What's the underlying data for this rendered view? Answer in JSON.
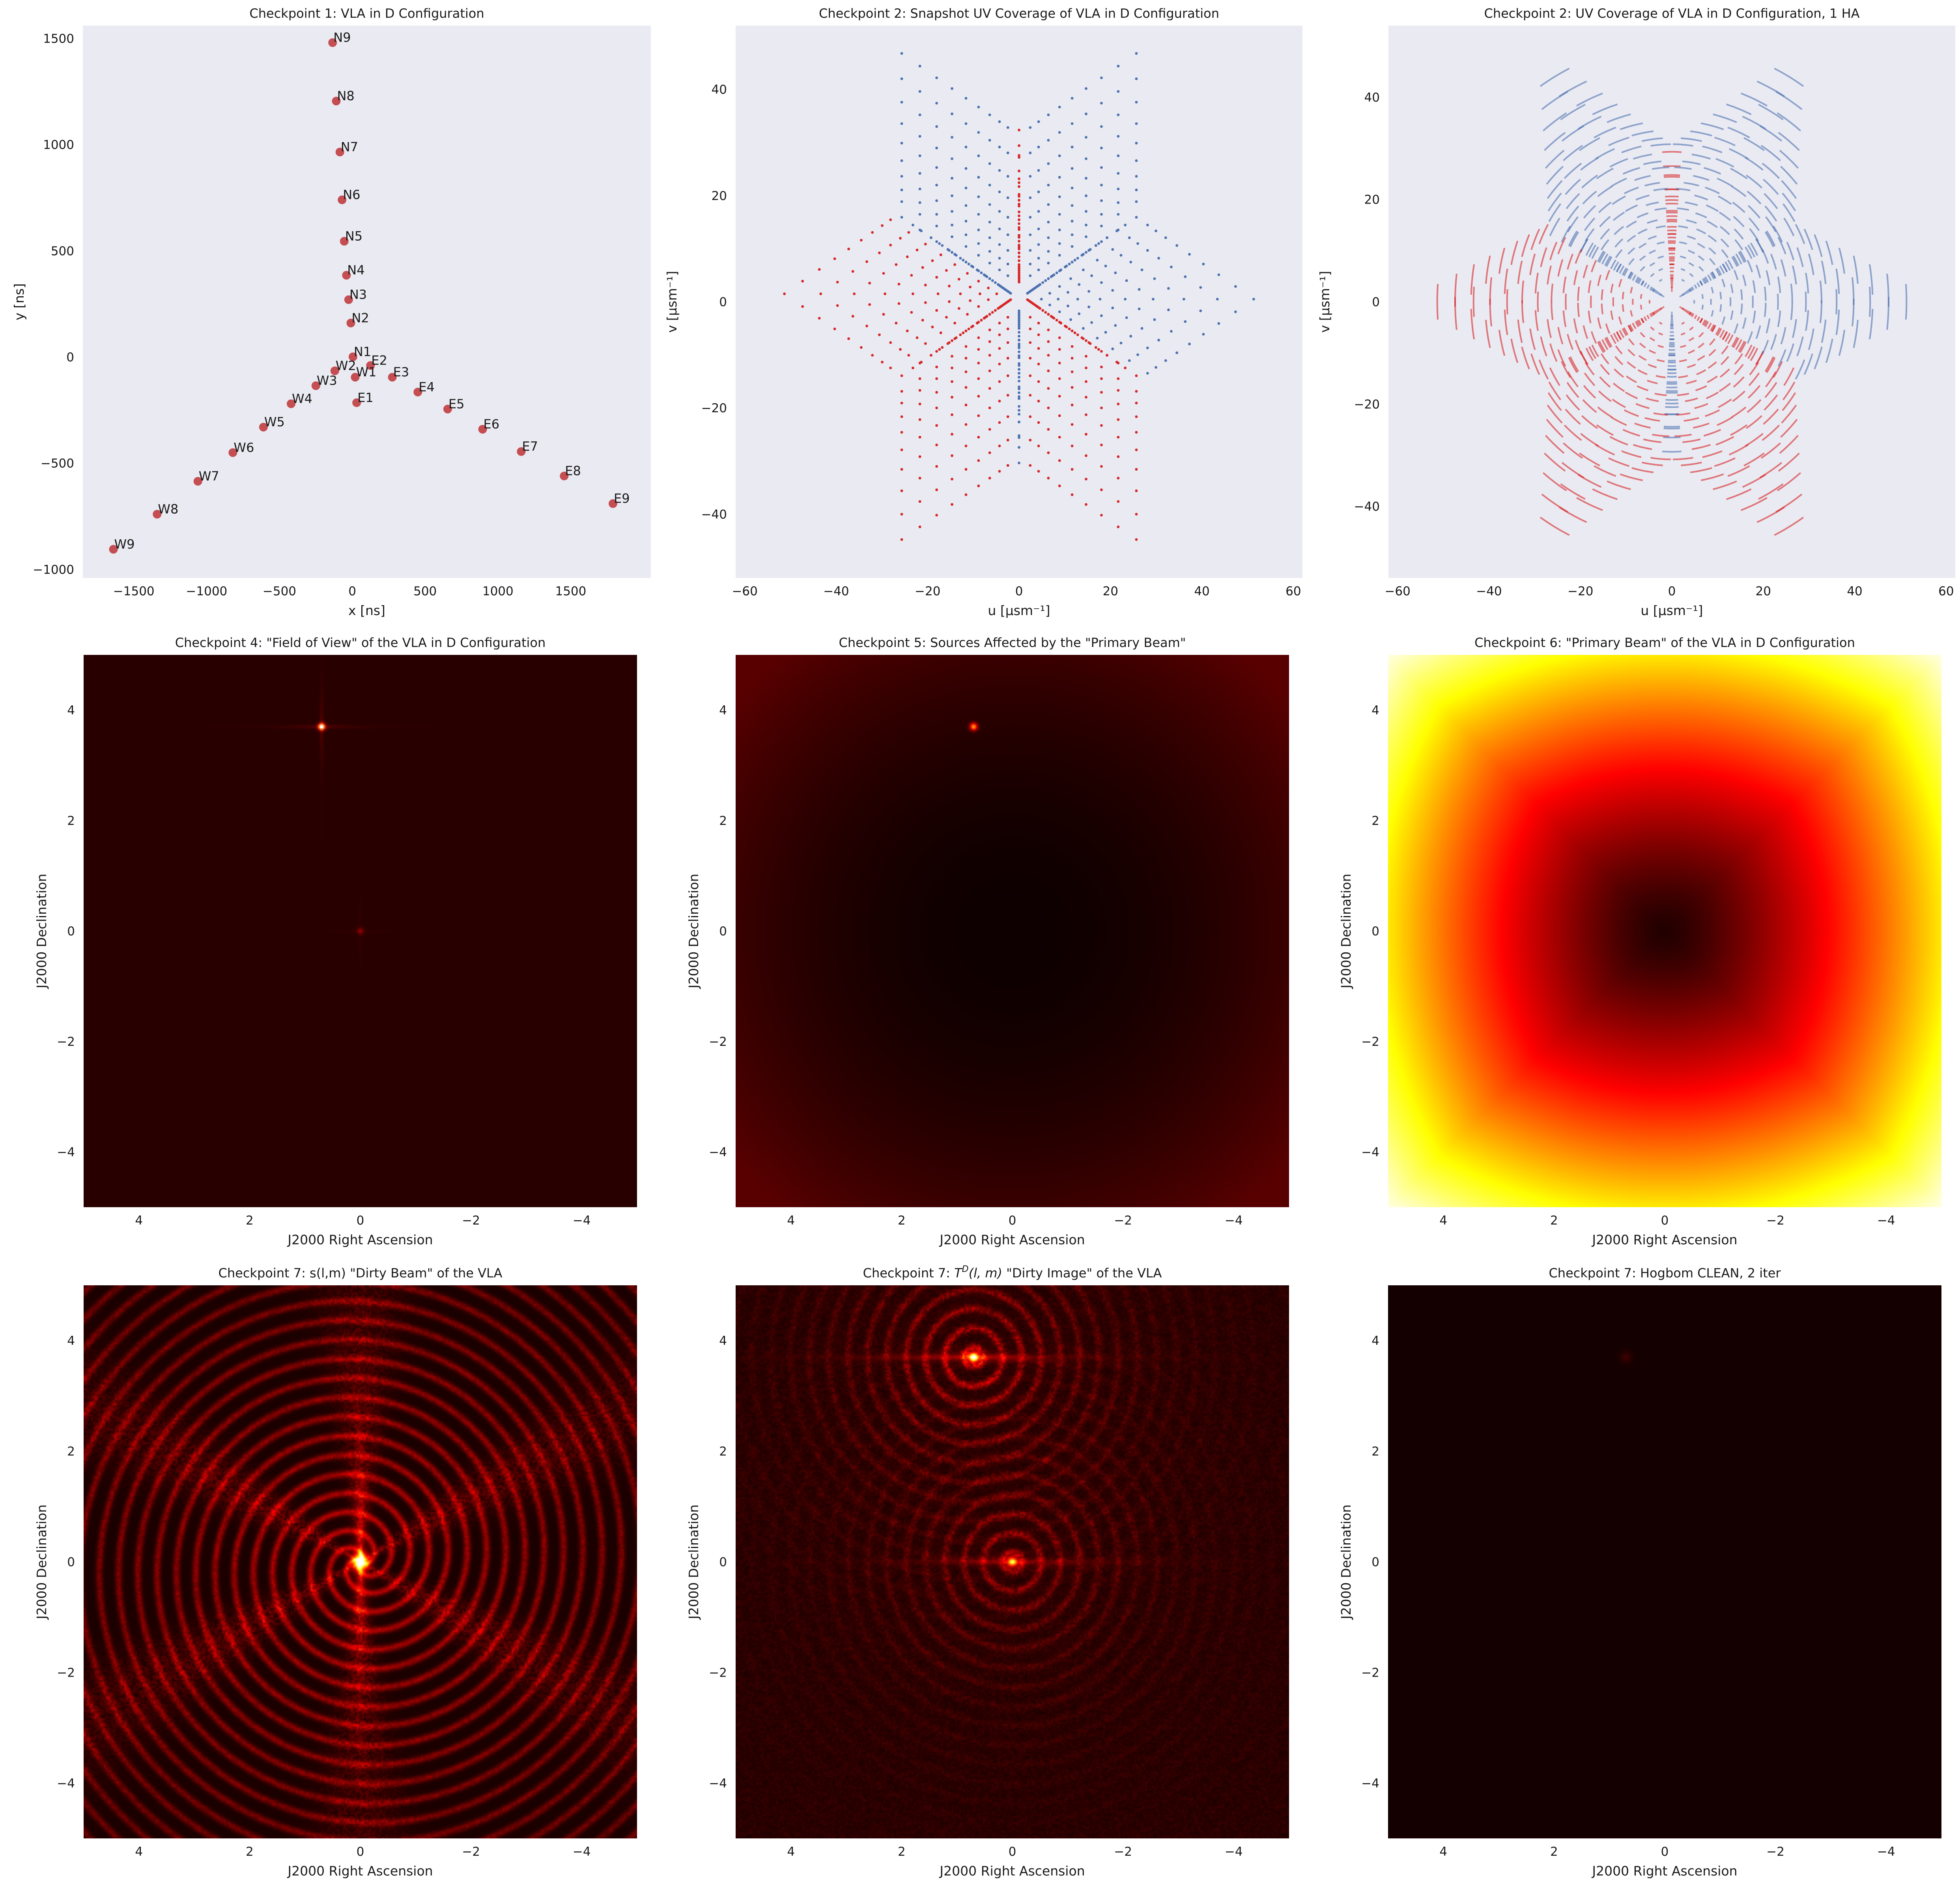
{
  "colors": {
    "axes_bg": "#eaeaf2",
    "antenna": "#c44e52",
    "uv_red": "#d62728",
    "uv_blue": "#4c72b0",
    "img_bg_dark": "#1f0000",
    "cmap_hot": [
      "#000000",
      "#ff0000",
      "#ffff00",
      "#ffffff"
    ]
  },
  "chart_data": [
    {
      "id": "p1",
      "type": "scatter",
      "title": "Checkpoint 1: VLA in D Configuration",
      "xlabel": "x [ns]",
      "ylabel": "y [ns]",
      "xlim": [
        -1850,
        2050
      ],
      "ylim": [
        -1040,
        1560
      ],
      "xticks": [
        -1500,
        -1000,
        -500,
        0,
        500,
        1000,
        1500
      ],
      "yticks": [
        -1000,
        -500,
        0,
        500,
        1000,
        1500
      ],
      "xtick_labels": [
        "−1500",
        "−1000",
        "−500",
        "0",
        "500",
        "1000",
        "1500"
      ],
      "ytick_labels": [
        "−1000",
        "−500",
        "0",
        "500",
        "1000",
        "1500"
      ],
      "grid": false,
      "points": [
        {
          "label": "N1",
          "x": 5,
          "y": 1
        },
        {
          "label": "N2",
          "x": -10,
          "y": 160
        },
        {
          "label": "N3",
          "x": -25,
          "y": 270
        },
        {
          "label": "N4",
          "x": -40,
          "y": 385
        },
        {
          "label": "N5",
          "x": -55,
          "y": 545
        },
        {
          "label": "N6",
          "x": -70,
          "y": 740
        },
        {
          "label": "N7",
          "x": -85,
          "y": 965
        },
        {
          "label": "N8",
          "x": -110,
          "y": 1205
        },
        {
          "label": "N9",
          "x": -135,
          "y": 1480
        },
        {
          "label": "E1",
          "x": 30,
          "y": -215
        },
        {
          "label": "E2",
          "x": 125,
          "y": -40
        },
        {
          "label": "E3",
          "x": 275,
          "y": -95
        },
        {
          "label": "E4",
          "x": 450,
          "y": -165
        },
        {
          "label": "E5",
          "x": 655,
          "y": -245
        },
        {
          "label": "E6",
          "x": 895,
          "y": -340
        },
        {
          "label": "E7",
          "x": 1160,
          "y": -445
        },
        {
          "label": "E8",
          "x": 1455,
          "y": -560
        },
        {
          "label": "E9",
          "x": 1790,
          "y": -690
        },
        {
          "label": "W1",
          "x": 20,
          "y": -95
        },
        {
          "label": "W2",
          "x": -120,
          "y": -65
        },
        {
          "label": "W3",
          "x": -250,
          "y": -135
        },
        {
          "label": "W4",
          "x": -420,
          "y": -220
        },
        {
          "label": "W5",
          "x": -610,
          "y": -330
        },
        {
          "label": "W6",
          "x": -820,
          "y": -450
        },
        {
          "label": "W7",
          "x": -1060,
          "y": -585
        },
        {
          "label": "W8",
          "x": -1340,
          "y": -740
        },
        {
          "label": "W9",
          "x": -1640,
          "y": -905
        }
      ]
    },
    {
      "id": "p2",
      "type": "scatter",
      "title": "Checkpoint 2: Snapshot UV Coverage of VLA in D Configuration",
      "xlabel": "u [μsm⁻¹]",
      "ylabel": "v [μsm⁻¹]",
      "xlim": [
        -62,
        62
      ],
      "ylim": [
        -52,
        52
      ],
      "xticks": [
        -60,
        -40,
        -20,
        0,
        20,
        40,
        60
      ],
      "yticks": [
        -40,
        -20,
        0,
        20,
        40
      ],
      "xtick_labels": [
        "−60",
        "−40",
        "−20",
        "0",
        "20",
        "40",
        "60"
      ],
      "ytick_labels": [
        "−40",
        "−20",
        "0",
        "20",
        "40"
      ],
      "grid": false,
      "series": [
        {
          "color": "red",
          "description_values": "baseline (u,v) points, one per antenna pair"
        },
        {
          "color": "blue",
          "description_values": "conjugate (−u,−v) points"
        }
      ]
    },
    {
      "id": "p3",
      "type": "scatter",
      "title": "Checkpoint 2: UV Coverage of VLA in D Configuration, 1 HA",
      "xlabel": "u [μsm⁻¹]",
      "ylabel": "v [μsm⁻¹]",
      "xlim": [
        -62,
        62
      ],
      "ylim": [
        -54,
        54
      ],
      "xticks": [
        -60,
        -40,
        -20,
        0,
        20,
        40,
        60
      ],
      "yticks": [
        -40,
        -20,
        0,
        20,
        40
      ],
      "xtick_labels": [
        "−60",
        "−40",
        "−20",
        "0",
        "20",
        "40",
        "60"
      ],
      "ytick_labels": [
        "−40",
        "−20",
        "0",
        "20",
        "40"
      ],
      "grid": false,
      "hour_angle_span": 1
    },
    {
      "id": "p4",
      "type": "heatmap",
      "title": "Checkpoint 4: \"Field of View\" of the VLA in D Configuration",
      "xlabel": "J2000 Right Ascension",
      "ylabel": "J2000 Declination",
      "xlim": [
        5,
        -5
      ],
      "ylim": [
        -5,
        5
      ],
      "xticks": [
        4,
        2,
        0,
        -2,
        -4
      ],
      "yticks": [
        -4,
        -2,
        0,
        2,
        4
      ],
      "xtick_labels": [
        "4",
        "2",
        "0",
        "−2",
        "−4"
      ],
      "ytick_labels": [
        "−4",
        "−2",
        "0",
        "2",
        "4"
      ],
      "sources": [
        {
          "x": 0.7,
          "y": 3.7,
          "strength": 1.0
        },
        {
          "x": 0,
          "y": 0,
          "strength": 0.15
        }
      ],
      "style": "fov"
    },
    {
      "id": "p5",
      "type": "heatmap",
      "title": "Checkpoint 5: Sources Affected by the \"Primary Beam\"",
      "xlabel": "J2000 Right Ascension",
      "ylabel": "J2000 Declination",
      "xlim": [
        5,
        -5
      ],
      "ylim": [
        -5,
        5
      ],
      "xticks": [
        4,
        2,
        0,
        -2,
        -4
      ],
      "yticks": [
        -4,
        -2,
        0,
        2,
        4
      ],
      "xtick_labels": [
        "4",
        "2",
        "0",
        "−2",
        "−4"
      ],
      "ytick_labels": [
        "−4",
        "−2",
        "0",
        "2",
        "4"
      ],
      "sources": [
        {
          "x": 0.7,
          "y": 3.7,
          "strength": 0.6
        }
      ],
      "style": "pb_affected"
    },
    {
      "id": "p6",
      "type": "heatmap",
      "title": "Checkpoint 6: \"Primary Beam\" of the VLA in D Configuration",
      "xlabel": "J2000 Right Ascension",
      "ylabel": "J2000 Declination",
      "xlim": [
        5,
        -5
      ],
      "ylim": [
        -5,
        5
      ],
      "xticks": [
        4,
        2,
        0,
        -2,
        -4
      ],
      "yticks": [
        -4,
        -2,
        0,
        2,
        4
      ],
      "xtick_labels": [
        "4",
        "2",
        "0",
        "−2",
        "−4"
      ],
      "ytick_labels": [
        "−4",
        "−2",
        "0",
        "2",
        "4"
      ],
      "style": "primary_beam"
    },
    {
      "id": "p7",
      "type": "heatmap",
      "title": "Checkpoint 7: s(l,m) \"Dirty Beam\" of the VLA",
      "xlabel": "J2000 Right Ascension",
      "ylabel": "J2000 Declination",
      "xlim": [
        5,
        -5
      ],
      "ylim": [
        -5,
        5
      ],
      "xticks": [
        4,
        2,
        0,
        -2,
        -4
      ],
      "yticks": [
        -4,
        -2,
        0,
        2,
        4
      ],
      "xtick_labels": [
        "4",
        "2",
        "0",
        "−2",
        "−4"
      ],
      "ytick_labels": [
        "−4",
        "−2",
        "0",
        "2",
        "4"
      ],
      "style": "dirty_beam"
    },
    {
      "id": "p8",
      "type": "heatmap",
      "title": "Checkpoint 7: T^D(l,m) \"Dirty Image\" of the VLA",
      "title_parts": [
        "Checkpoint 7: ",
        "T",
        "D",
        "(l, m)",
        " \"Dirty Image\" of the VLA"
      ],
      "xlabel": "J2000 Right Ascension",
      "ylabel": "J2000 Declination",
      "xlim": [
        5,
        -5
      ],
      "ylim": [
        -5,
        5
      ],
      "xticks": [
        4,
        2,
        0,
        -2,
        -4
      ],
      "yticks": [
        -4,
        -2,
        0,
        2,
        4
      ],
      "xtick_labels": [
        "4",
        "2",
        "0",
        "−2",
        "−4"
      ],
      "ytick_labels": [
        "−4",
        "−2",
        "0",
        "2",
        "4"
      ],
      "sources": [
        {
          "x": 0.7,
          "y": 3.7,
          "strength": 1.0
        },
        {
          "x": 0,
          "y": 0,
          "strength": 0.7
        }
      ],
      "style": "dirty_image"
    },
    {
      "id": "p9",
      "type": "heatmap",
      "title": "Checkpoint 7: Hogbom CLEAN, 2 iter",
      "xlabel": "J2000 Right Ascension",
      "ylabel": "J2000 Declination",
      "xlim": [
        5,
        -5
      ],
      "ylim": [
        -5,
        5
      ],
      "xticks": [
        4,
        2,
        0,
        -2,
        -4
      ],
      "yticks": [
        -4,
        -2,
        0,
        2,
        4
      ],
      "xtick_labels": [
        "4",
        "2",
        "0",
        "−2",
        "−4"
      ],
      "ytick_labels": [
        "−4",
        "−2",
        "0",
        "2",
        "4"
      ],
      "style": "clean"
    }
  ]
}
